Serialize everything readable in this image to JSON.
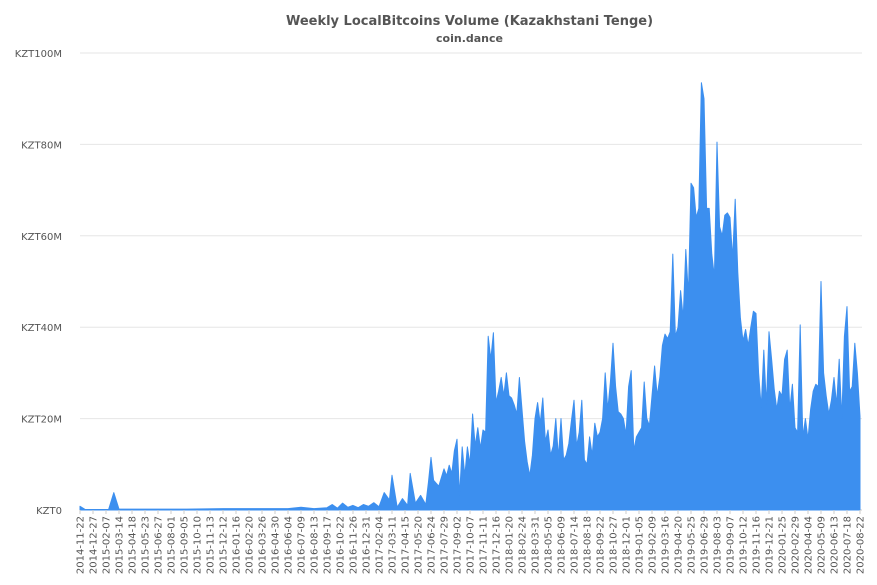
{
  "chart_data": {
    "type": "area",
    "title": "Weekly LocalBitcoins Volume (Kazakhstani Tenge)",
    "subtitle": "coin.dance",
    "xlabel": "",
    "ylabel": "",
    "ylim": [
      0,
      100
    ],
    "y_unit": "millions KZT",
    "y_ticks": [
      0,
      20,
      40,
      60,
      80,
      100
    ],
    "y_tick_labels": [
      "KZT0",
      "KZT20M",
      "KZT40M",
      "KZT60M",
      "KZT80M",
      "KZT100M"
    ],
    "x_start": "2014-11-22",
    "x_end": "2020-08-22",
    "x_tick_labels": [
      "2014-11-22",
      "2014-12-27",
      "2015-02-07",
      "2015-03-14",
      "2015-04-18",
      "2015-05-23",
      "2015-06-27",
      "2015-08-01",
      "2015-09-05",
      "2015-10-10",
      "2015-11-13",
      "2015-12-12",
      "2016-01-16",
      "2016-02-20",
      "2016-03-26",
      "2016-04-30",
      "2016-06-04",
      "2016-07-09",
      "2016-08-13",
      "2016-09-17",
      "2016-10-22",
      "2016-11-26",
      "2016-12-31",
      "2017-02-04",
      "2017-03-11",
      "2017-04-15",
      "2017-05-20",
      "2017-06-24",
      "2017-07-29",
      "2017-09-02",
      "2017-10-07",
      "2017-11-11",
      "2017-12-16",
      "2018-01-20",
      "2018-02-24",
      "2018-03-31",
      "2018-05-05",
      "2018-06-09",
      "2018-07-14",
      "2018-08-18",
      "2018-09-22",
      "2018-10-27",
      "2018-12-01",
      "2019-01-05",
      "2019-02-09",
      "2019-03-16",
      "2019-04-20",
      "2019-05-25",
      "2019-06-29",
      "2019-08-03",
      "2019-09-07",
      "2019-10-12",
      "2019-11-16",
      "2019-12-21",
      "2020-01-25",
      "2020-02-29",
      "2020-04-04",
      "2020-05-09",
      "2020-06-13",
      "2020-07-18",
      "2020-08-22"
    ],
    "grid": true,
    "legend": "none",
    "series": [
      {
        "color": "#3c8fef",
        "points": [
          [
            "2014-11-22",
            0.8
          ],
          [
            "2014-12-06",
            0.1
          ],
          [
            "2015-01-10",
            0.1
          ],
          [
            "2015-02-07",
            0.1
          ],
          [
            "2015-02-21",
            3.8
          ],
          [
            "2015-03-07",
            0.2
          ],
          [
            "2015-05-23",
            0.2
          ],
          [
            "2015-09-05",
            0.2
          ],
          [
            "2015-12-12",
            0.3
          ],
          [
            "2016-03-26",
            0.3
          ],
          [
            "2016-06-04",
            0.3
          ],
          [
            "2016-07-09",
            0.6
          ],
          [
            "2016-08-13",
            0.3
          ],
          [
            "2016-09-17",
            0.5
          ],
          [
            "2016-10-01",
            1.2
          ],
          [
            "2016-10-15",
            0.4
          ],
          [
            "2016-10-29",
            1.5
          ],
          [
            "2016-11-12",
            0.6
          ],
          [
            "2016-11-26",
            1.0
          ],
          [
            "2016-12-10",
            0.5
          ],
          [
            "2016-12-24",
            1.2
          ],
          [
            "2017-01-07",
            0.8
          ],
          [
            "2017-01-21",
            1.6
          ],
          [
            "2017-02-04",
            0.7
          ],
          [
            "2017-02-18",
            3.8
          ],
          [
            "2017-03-04",
            2.2
          ],
          [
            "2017-03-11",
            7.6
          ],
          [
            "2017-03-25",
            0.6
          ],
          [
            "2017-04-08",
            2.5
          ],
          [
            "2017-04-22",
            1.0
          ],
          [
            "2017-04-29",
            8.0
          ],
          [
            "2017-05-13",
            1.5
          ],
          [
            "2017-05-27",
            3.2
          ],
          [
            "2017-06-10",
            1.2
          ],
          [
            "2017-06-17",
            6.0
          ],
          [
            "2017-06-24",
            11.5
          ],
          [
            "2017-07-01",
            6.5
          ],
          [
            "2017-07-15",
            5.2
          ],
          [
            "2017-07-29",
            9.0
          ],
          [
            "2017-08-05",
            7.5
          ],
          [
            "2017-08-12",
            9.8
          ],
          [
            "2017-08-19",
            8.0
          ],
          [
            "2017-08-26",
            13.0
          ],
          [
            "2017-09-02",
            15.5
          ],
          [
            "2017-09-09",
            3.2
          ],
          [
            "2017-09-16",
            13.8
          ],
          [
            "2017-09-23",
            7.5
          ],
          [
            "2017-09-30",
            13.8
          ],
          [
            "2017-10-07",
            10.0
          ],
          [
            "2017-10-14",
            21.0
          ],
          [
            "2017-10-21",
            14.0
          ],
          [
            "2017-10-28",
            18.0
          ],
          [
            "2017-11-04",
            13.5
          ],
          [
            "2017-11-11",
            17.5
          ],
          [
            "2017-11-18",
            17.0
          ],
          [
            "2017-11-25",
            38.0
          ],
          [
            "2017-12-02",
            33.0
          ],
          [
            "2017-12-09",
            38.8
          ],
          [
            "2017-12-16",
            23.5
          ],
          [
            "2017-12-23",
            26.0
          ],
          [
            "2017-12-30",
            29.0
          ],
          [
            "2018-01-06",
            25.0
          ],
          [
            "2018-01-13",
            30.0
          ],
          [
            "2018-01-20",
            25.0
          ],
          [
            "2018-01-27",
            24.5
          ],
          [
            "2018-02-03",
            23.0
          ],
          [
            "2018-02-10",
            21.0
          ],
          [
            "2018-02-17",
            29.0
          ],
          [
            "2018-02-24",
            22.0
          ],
          [
            "2018-03-03",
            15.0
          ],
          [
            "2018-03-10",
            10.5
          ],
          [
            "2018-03-17",
            7.5
          ],
          [
            "2018-03-24",
            12.0
          ],
          [
            "2018-03-31",
            20.0
          ],
          [
            "2018-04-07",
            23.5
          ],
          [
            "2018-04-14",
            19.0
          ],
          [
            "2018-04-21",
            24.5
          ],
          [
            "2018-04-28",
            15.0
          ],
          [
            "2018-05-05",
            17.5
          ],
          [
            "2018-05-12",
            12.0
          ],
          [
            "2018-05-19",
            14.0
          ],
          [
            "2018-05-26",
            20.0
          ],
          [
            "2018-06-02",
            11.5
          ],
          [
            "2018-06-09",
            20.0
          ],
          [
            "2018-06-16",
            11.0
          ],
          [
            "2018-06-23",
            12.0
          ],
          [
            "2018-06-30",
            14.5
          ],
          [
            "2018-07-07",
            19.5
          ],
          [
            "2018-07-14",
            24.0
          ],
          [
            "2018-07-21",
            14.0
          ],
          [
            "2018-07-28",
            17.0
          ],
          [
            "2018-08-04",
            24.0
          ],
          [
            "2018-08-11",
            11.0
          ],
          [
            "2018-08-18",
            10.0
          ],
          [
            "2018-08-25",
            16.0
          ],
          [
            "2018-09-01",
            12.0
          ],
          [
            "2018-09-08",
            19.0
          ],
          [
            "2018-09-15",
            16.0
          ],
          [
            "2018-09-22",
            17.0
          ],
          [
            "2018-09-29",
            20.0
          ],
          [
            "2018-10-06",
            30.0
          ],
          [
            "2018-10-13",
            22.0
          ],
          [
            "2018-10-20",
            28.0
          ],
          [
            "2018-10-27",
            36.5
          ],
          [
            "2018-11-03",
            27.0
          ],
          [
            "2018-11-10",
            21.5
          ],
          [
            "2018-11-17",
            21.0
          ],
          [
            "2018-11-24",
            20.0
          ],
          [
            "2018-12-01",
            16.5
          ],
          [
            "2018-12-08",
            27.0
          ],
          [
            "2018-12-15",
            30.5
          ],
          [
            "2018-12-22",
            13.0
          ],
          [
            "2018-12-29",
            16.0
          ],
          [
            "2019-01-05",
            17.0
          ],
          [
            "2019-01-12",
            18.0
          ],
          [
            "2019-01-19",
            28.0
          ],
          [
            "2019-01-26",
            20.0
          ],
          [
            "2019-02-02",
            18.5
          ],
          [
            "2019-02-09",
            25.0
          ],
          [
            "2019-02-16",
            31.5
          ],
          [
            "2019-02-23",
            25.0
          ],
          [
            "2019-03-02",
            29.0
          ],
          [
            "2019-03-09",
            36.0
          ],
          [
            "2019-03-16",
            38.5
          ],
          [
            "2019-03-23",
            37.5
          ],
          [
            "2019-03-30",
            39.0
          ],
          [
            "2019-04-06",
            56.0
          ],
          [
            "2019-04-13",
            38.0
          ],
          [
            "2019-04-20",
            40.0
          ],
          [
            "2019-04-27",
            48.0
          ],
          [
            "2019-05-04",
            42.0
          ],
          [
            "2019-05-11",
            57.0
          ],
          [
            "2019-05-18",
            47.0
          ],
          [
            "2019-05-25",
            71.5
          ],
          [
            "2019-06-01",
            70.5
          ],
          [
            "2019-06-08",
            64.0
          ],
          [
            "2019-06-15",
            66.0
          ],
          [
            "2019-06-22",
            93.5
          ],
          [
            "2019-06-29",
            90.0
          ],
          [
            "2019-07-06",
            66.0
          ],
          [
            "2019-07-13",
            66.0
          ],
          [
            "2019-07-20",
            56.0
          ],
          [
            "2019-07-27",
            51.0
          ],
          [
            "2019-08-03",
            80.5
          ],
          [
            "2019-08-10",
            62.0
          ],
          [
            "2019-08-17",
            60.0
          ],
          [
            "2019-08-24",
            64.5
          ],
          [
            "2019-08-31",
            65.0
          ],
          [
            "2019-09-07",
            64.0
          ],
          [
            "2019-09-14",
            55.0
          ],
          [
            "2019-09-21",
            68.0
          ],
          [
            "2019-09-28",
            52.0
          ],
          [
            "2019-10-05",
            42.0
          ],
          [
            "2019-10-12",
            37.0
          ],
          [
            "2019-10-19",
            39.5
          ],
          [
            "2019-10-26",
            36.0
          ],
          [
            "2019-11-02",
            40.0
          ],
          [
            "2019-11-09",
            43.5
          ],
          [
            "2019-11-16",
            43.0
          ],
          [
            "2019-11-23",
            30.0
          ],
          [
            "2019-11-30",
            22.5
          ],
          [
            "2019-12-07",
            35.0
          ],
          [
            "2019-12-14",
            23.0
          ],
          [
            "2019-12-21",
            39.0
          ],
          [
            "2019-12-28",
            33.0
          ],
          [
            "2020-01-04",
            26.5
          ],
          [
            "2020-01-11",
            22.0
          ],
          [
            "2020-01-18",
            26.0
          ],
          [
            "2020-01-25",
            25.0
          ],
          [
            "2020-02-01",
            33.0
          ],
          [
            "2020-02-08",
            35.0
          ],
          [
            "2020-02-15",
            22.0
          ],
          [
            "2020-02-22",
            27.5
          ],
          [
            "2020-02-29",
            18.0
          ],
          [
            "2020-03-07",
            17.0
          ],
          [
            "2020-03-14",
            40.5
          ],
          [
            "2020-03-21",
            16.0
          ],
          [
            "2020-03-28",
            20.0
          ],
          [
            "2020-04-04",
            15.5
          ],
          [
            "2020-04-11",
            22.0
          ],
          [
            "2020-04-18",
            26.0
          ],
          [
            "2020-04-25",
            27.5
          ],
          [
            "2020-05-02",
            27.0
          ],
          [
            "2020-05-09",
            50.0
          ],
          [
            "2020-05-16",
            30.0
          ],
          [
            "2020-05-23",
            25.0
          ],
          [
            "2020-05-30",
            21.0
          ],
          [
            "2020-06-06",
            24.0
          ],
          [
            "2020-06-13",
            29.0
          ],
          [
            "2020-06-20",
            23.0
          ],
          [
            "2020-06-27",
            33.0
          ],
          [
            "2020-07-04",
            20.0
          ],
          [
            "2020-07-11",
            38.0
          ],
          [
            "2020-07-18",
            44.5
          ],
          [
            "2020-07-25",
            26.0
          ],
          [
            "2020-08-01",
            27.0
          ],
          [
            "2020-08-08",
            36.5
          ],
          [
            "2020-08-15",
            30.0
          ],
          [
            "2020-08-22",
            20.5
          ]
        ]
      }
    ]
  }
}
